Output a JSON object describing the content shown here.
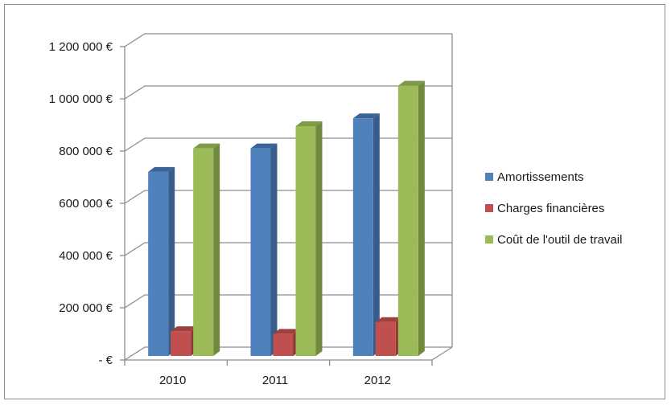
{
  "chart_data": {
    "type": "bar",
    "title": "",
    "xlabel": "",
    "ylabel": "",
    "categories": [
      "2010",
      "2011",
      "2012"
    ],
    "series": [
      {
        "name": "Amortissements",
        "values": [
          705000,
          795000,
          910000
        ],
        "color": "#4f81bd",
        "side_color": "#385d8a",
        "top_color": "#3a6497"
      },
      {
        "name": "Charges financières",
        "values": [
          95000,
          85000,
          130000
        ],
        "color": "#c0504d",
        "side_color": "#8c3836",
        "top_color": "#9e403d"
      },
      {
        "name": "Coût de l'outil de travail",
        "values": [
          795000,
          880000,
          1035000
        ],
        "color": "#9bbb59",
        "side_color": "#71893f",
        "top_color": "#7d9a46"
      }
    ],
    "ylim": [
      0,
      1200000
    ],
    "yticks": [
      0,
      200000,
      400000,
      600000,
      800000,
      1000000,
      1200000
    ],
    "ytick_labels": [
      "-  €",
      "200 000 €",
      "400 000 €",
      "600 000 €",
      "800 000 €",
      "1 000 000 €",
      "1 200 000 €"
    ],
    "grid": true,
    "legend_position": "right",
    "style": "3d-clustered-column"
  }
}
